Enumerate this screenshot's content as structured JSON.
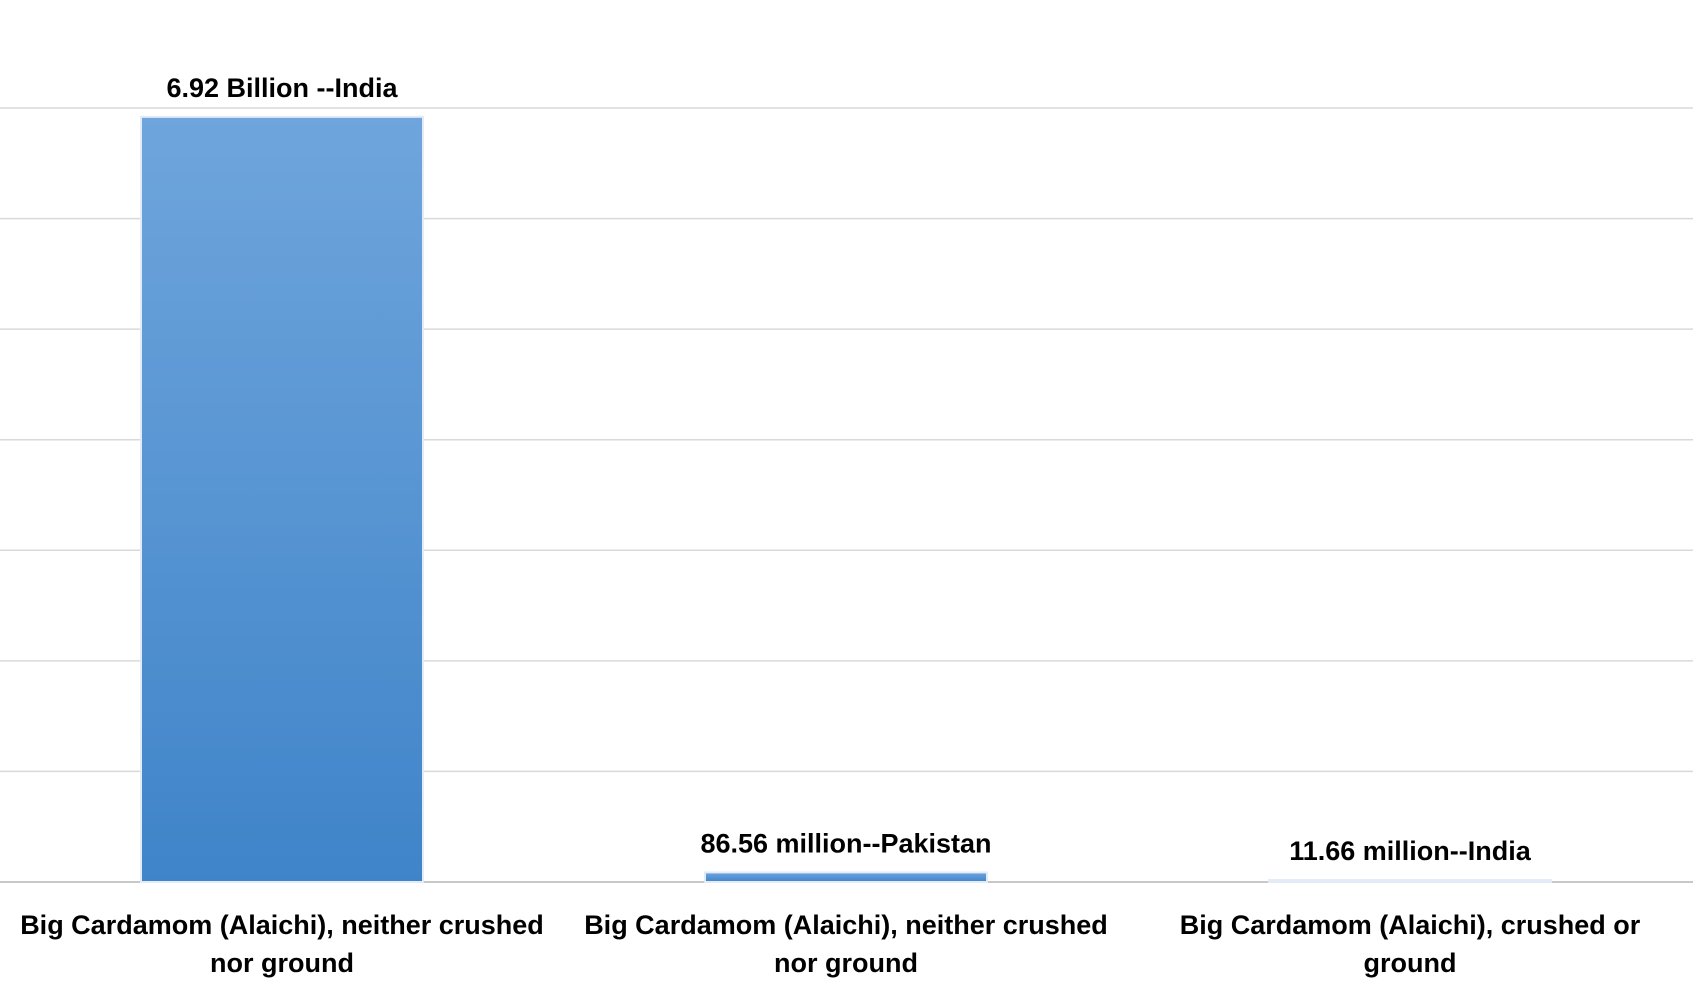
{
  "chart_data": {
    "type": "bar",
    "title": "",
    "xlabel": "",
    "ylabel": "",
    "categories": [
      "Big Cardamom (Alaichi), neither crushed nor ground",
      "Big Cardamom (Alaichi), neither crushed nor ground",
      "Big Cardamom (Alaichi), crushed or ground"
    ],
    "values": [
      6920000000,
      86560000,
      11660000
    ],
    "data_labels": [
      "6.92 Billion --India",
      "86.56 million--Pakistan",
      "11.66 million--India"
    ],
    "ylim": [
      0,
      7000000000
    ],
    "y_gridline_count": 7,
    "grid": true,
    "bar_color": "#4f8fd0",
    "bar_color_top": "#6fa5dc",
    "bar_color_bottom": "#3f84c9",
    "gridline_color": "#d9d9d9"
  }
}
